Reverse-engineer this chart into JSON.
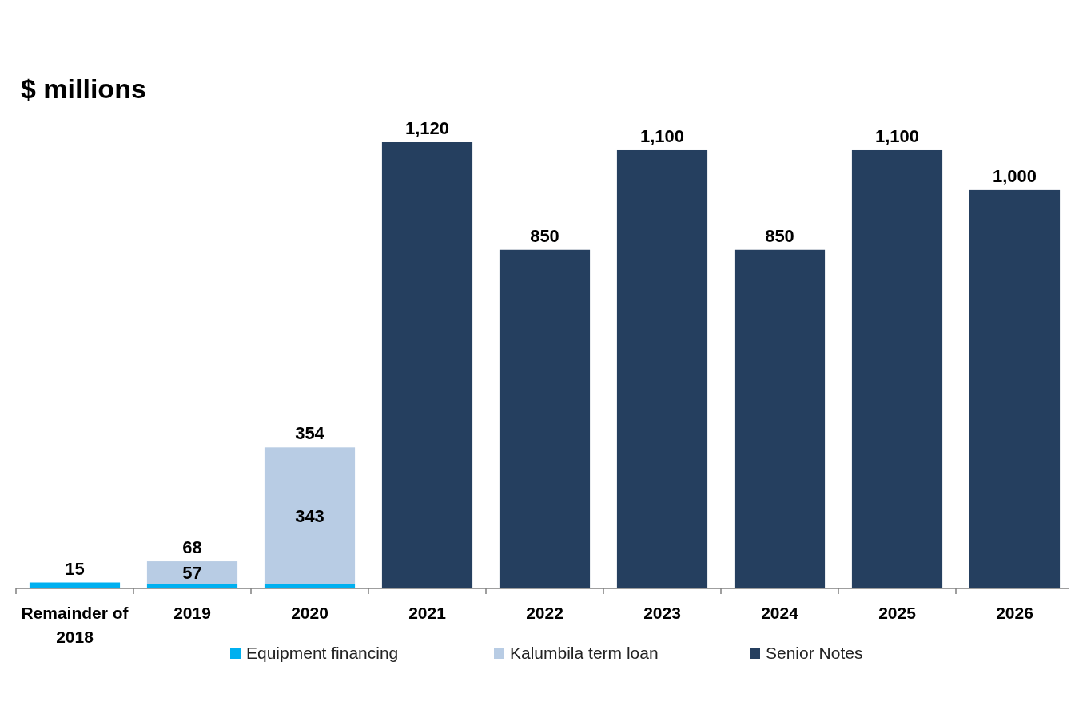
{
  "chart_data": {
    "type": "bar",
    "title": "$ millions",
    "stacked": true,
    "legend": "bottom",
    "categories": [
      "Remainder of 2018",
      "2019",
      "2020",
      "2021",
      "2022",
      "2023",
      "2024",
      "2025",
      "2026"
    ],
    "series": [
      {
        "name": "Equipment financing",
        "color": "#00b0f0",
        "values": [
          15,
          11,
          11,
          null,
          null,
          null,
          null,
          null,
          null
        ]
      },
      {
        "name": "Kalumbila term loan",
        "color": "#b8cce4",
        "values": [
          null,
          57,
          343,
          null,
          null,
          null,
          null,
          null,
          null
        ],
        "value_labels": [
          null,
          "57",
          "343",
          null,
          null,
          null,
          null,
          null,
          null
        ]
      },
      {
        "name": "Senior Notes",
        "color": "#253f5f",
        "values": [
          null,
          null,
          null,
          1120,
          850,
          1100,
          850,
          1100,
          1000
        ]
      }
    ],
    "totals": [
      "15",
      "68",
      "354",
      "1,120",
      "850",
      "1,100",
      "850",
      "1,100",
      "1,000"
    ]
  }
}
